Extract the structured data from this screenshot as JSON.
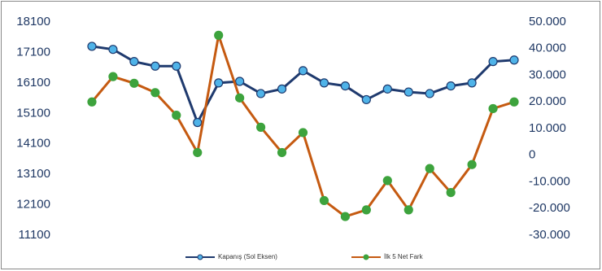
{
  "chart_data": {
    "type": "line",
    "categories": [
      null,
      null,
      null,
      null,
      null,
      null,
      null,
      null,
      null,
      null,
      null,
      null,
      null,
      null,
      null,
      null,
      null,
      null,
      null,
      null,
      null
    ],
    "series": [
      {
        "name": "Kapanış (Sol Eksen)",
        "color": "#1f3a6e",
        "marker_color": "#4fb3e8",
        "axis": "y",
        "values": [
          17300,
          17200,
          16800,
          16650,
          16650,
          14800,
          16100,
          16150,
          15750,
          15900,
          16500,
          16100,
          16000,
          15550,
          15900,
          15800,
          15750,
          16000,
          16100,
          16800,
          16850
        ]
      },
      {
        "name": "İlk 5 Net Fark",
        "color": "#c55a11",
        "marker_color": "#3da33d",
        "axis": "y2",
        "values": [
          20000,
          29500,
          27000,
          23500,
          15000,
          1000,
          45000,
          21500,
          10500,
          1000,
          8500,
          -17000,
          -23000,
          -20500,
          -9500,
          -20500,
          -5000,
          -14000,
          -3500,
          17500,
          20000
        ]
      }
    ],
    "ylim": [
      11100,
      18100
    ],
    "yticks": [
      11100,
      12100,
      13100,
      14100,
      15100,
      16100,
      17100,
      18100
    ],
    "y2lim": [
      -30000,
      50000
    ],
    "y2ticks": [
      {
        "value": -30000,
        "label": "-30.000"
      },
      {
        "value": -20000,
        "label": "-20.000"
      },
      {
        "value": -10000,
        "label": "-10.000"
      },
      {
        "value": 0,
        "label": "0"
      },
      {
        "value": 10000,
        "label": "10.000"
      },
      {
        "value": 20000,
        "label": "20.000"
      },
      {
        "value": 30000,
        "label": "30.000"
      },
      {
        "value": 40000,
        "label": "40.000"
      },
      {
        "value": 50000,
        "label": "50.000"
      }
    ]
  }
}
